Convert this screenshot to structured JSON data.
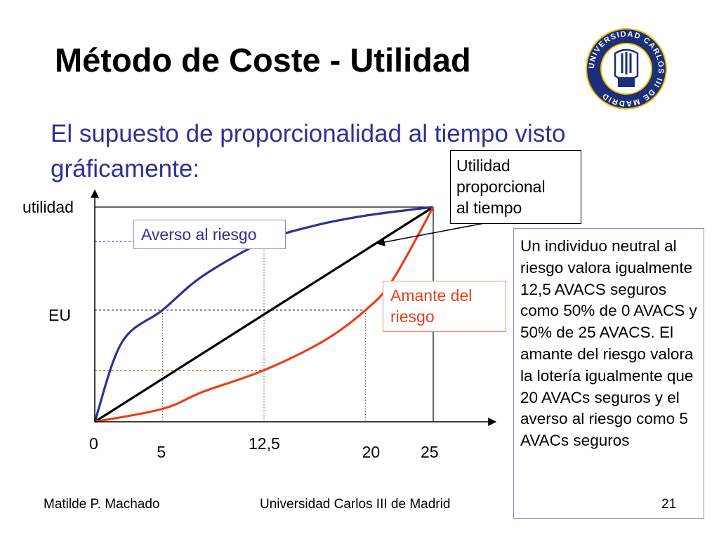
{
  "slide": {
    "title": "Método de Coste - Utilidad",
    "subtitle": "El supuesto de proporcionalidad al tiempo visto gráficamente:",
    "footer_left": "Matilde P. Machado",
    "footer_center": "Universidad Carlos III de Madrid",
    "page_number": "21",
    "seal_text": "UNIVERSIDAD CARLOS III DE MADRID"
  },
  "chart_data": {
    "type": "line",
    "title": "",
    "ylabel": "utilidad",
    "xlabel": "",
    "xlim": [
      0,
      25
    ],
    "ylim": [
      0,
      1
    ],
    "x_ticks": [
      "0",
      "5",
      "12,5",
      "20",
      "25"
    ],
    "y_ticks": [
      "EU"
    ],
    "series": [
      {
        "name": "Utilidad proporcional al tiempo",
        "color": "#000000",
        "x": [
          0,
          25
        ],
        "y": [
          0,
          1
        ]
      },
      {
        "name": "Averso al riesgo",
        "color": "#2e3192",
        "x": [
          0,
          2,
          5,
          8,
          12.5,
          16,
          20,
          25
        ],
        "y": [
          0,
          0.37,
          0.52,
          0.68,
          0.84,
          0.91,
          0.96,
          1
        ]
      },
      {
        "name": "Amante del riesgo",
        "color": "#e8401c",
        "x": [
          0,
          5,
          8,
          12.5,
          17,
          20,
          22,
          25
        ],
        "y": [
          0,
          0.06,
          0.14,
          0.24,
          0.38,
          0.52,
          0.66,
          1
        ]
      }
    ],
    "guides": {
      "eu_level": 0.52,
      "eu_x_values": [
        5,
        12.5,
        20
      ]
    },
    "annotations": {
      "proporcional_label": "Utilidad\nproporcional\nal tiempo",
      "averso_label": "Averso al riesgo",
      "amante_label": "Amante del\nriesgo",
      "eu_label": "EU",
      "note": "Un individuo neutral al riesgo valora igualmente 12,5 AVACS seguros como 50% de 0 AVACS y 50% de 25 AVACS. El amante del riesgo valora la lotería igualmente que 20 AVACs seguros y el averso al riesgo como 5 AVACs seguros"
    }
  }
}
